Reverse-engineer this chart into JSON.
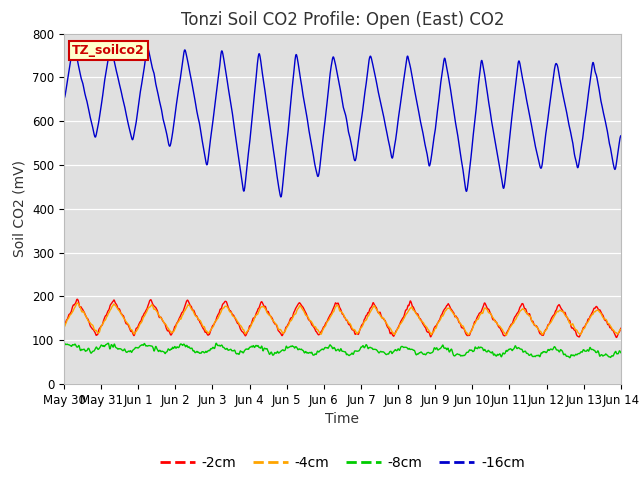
{
  "title": "Tonzi Soil CO2 Profile: Open (East) CO2",
  "ylabel": "Soil CO2 (mV)",
  "xlabel": "Time",
  "ylim": [
    0,
    800
  ],
  "yticks": [
    0,
    100,
    200,
    300,
    400,
    500,
    600,
    700,
    800
  ],
  "x_tick_labels": [
    "May 30",
    "May 31",
    "Jun 1",
    "Jun 2",
    "Jun 3",
    "Jun 4",
    "Jun 5",
    "Jun 6",
    "Jun 7",
    "Jun 8",
    "Jun 9",
    "Jun 10",
    "Jun 11",
    "Jun 12",
    "Jun 13",
    "Jun 14"
  ],
  "color_2cm": "#ff0000",
  "color_4cm": "#ffa500",
  "color_8cm": "#00cc00",
  "color_16cm": "#0000cc",
  "label_2cm": "-2cm",
  "label_4cm": "-4cm",
  "label_8cm": "-8cm",
  "label_16cm": "-16cm",
  "sensor_label": "TZ_soilco2",
  "sensor_label_facecolor": "#ffffcc",
  "sensor_label_edgecolor": "#cc0000",
  "bg_color": "#e0e0e0",
  "title_fontsize": 12,
  "axis_label_fontsize": 10,
  "tick_fontsize": 8.5
}
